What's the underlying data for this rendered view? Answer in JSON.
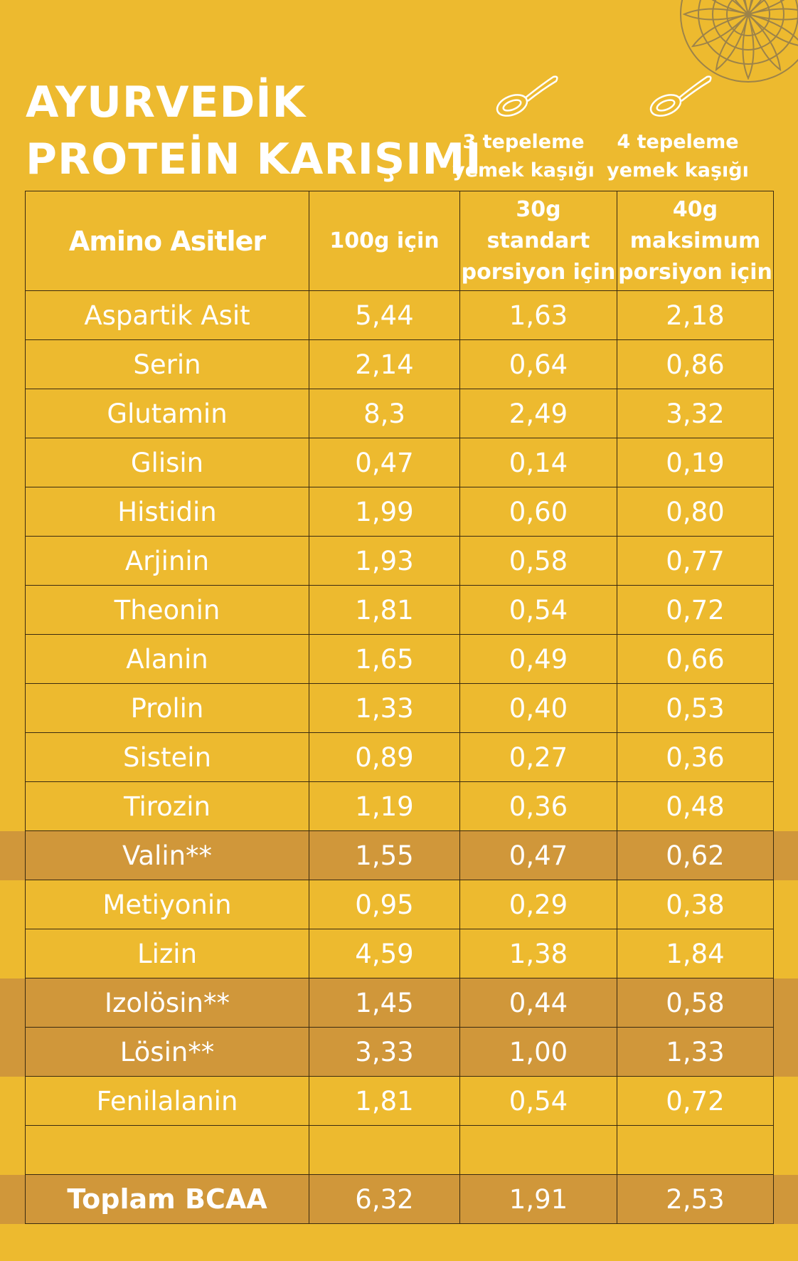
{
  "title": {
    "line1": "AYURVEDİK",
    "line2": "PROTEİN KARIŞIMI"
  },
  "serving_notes": [
    {
      "line1": "3 tepeleme",
      "line2": "yemek kaşığı",
      "icon": "spoon-icon"
    },
    {
      "line1": "4 tepeleme",
      "line2": "yemek kaşığı",
      "icon": "spoon-icon"
    }
  ],
  "table": {
    "headers": [
      {
        "lines": [
          "Amino Asitler"
        ]
      },
      {
        "lines": [
          "100g için"
        ]
      },
      {
        "lines": [
          "30g",
          "standart",
          "porsiyon için"
        ]
      },
      {
        "lines": [
          "40g",
          "maksimum",
          "porsiyon için"
        ]
      }
    ],
    "rows": [
      {
        "name": "Aspartik Asit",
        "per100": "5,44",
        "per30": "1,63",
        "per40": "2,18",
        "highlight": false
      },
      {
        "name": "Serin",
        "per100": "2,14",
        "per30": "0,64",
        "per40": "0,86",
        "highlight": false
      },
      {
        "name": "Glutamin",
        "per100": "8,3",
        "per30": "2,49",
        "per40": "3,32",
        "highlight": false
      },
      {
        "name": "Glisin",
        "per100": "0,47",
        "per30": "0,14",
        "per40": "0,19",
        "highlight": false
      },
      {
        "name": "Histidin",
        "per100": "1,99",
        "per30": "0,60",
        "per40": "0,80",
        "highlight": false
      },
      {
        "name": "Arjinin",
        "per100": "1,93",
        "per30": "0,58",
        "per40": "0,77",
        "highlight": false
      },
      {
        "name": "Theonin",
        "per100": "1,81",
        "per30": "0,54",
        "per40": "0,72",
        "highlight": false
      },
      {
        "name": "Alanin",
        "per100": "1,65",
        "per30": "0,49",
        "per40": "0,66",
        "highlight": false
      },
      {
        "name": "Prolin",
        "per100": "1,33",
        "per30": "0,40",
        "per40": "0,53",
        "highlight": false
      },
      {
        "name": "Sistein",
        "per100": "0,89",
        "per30": "0,27",
        "per40": "0,36",
        "highlight": false
      },
      {
        "name": "Tirozin",
        "per100": "1,19",
        "per30": "0,36",
        "per40": "0,48",
        "highlight": false
      },
      {
        "name": "Valin**",
        "per100": "1,55",
        "per30": "0,47",
        "per40": "0,62",
        "highlight": true
      },
      {
        "name": "Metiyonin",
        "per100": "0,95",
        "per30": "0,29",
        "per40": "0,38",
        "highlight": false
      },
      {
        "name": "Lizin",
        "per100": "4,59",
        "per30": "1,38",
        "per40": "1,84",
        "highlight": false
      },
      {
        "name": "Izolösin**",
        "per100": "1,45",
        "per30": "0,44",
        "per40": "0,58",
        "highlight": true
      },
      {
        "name": "Lösin**",
        "per100": "3,33",
        "per30": "1,00",
        "per40": "1,33",
        "highlight": true
      },
      {
        "name": "Fenilalanin",
        "per100": "1,81",
        "per30": "0,54",
        "per40": "0,72",
        "highlight": false
      },
      {
        "name": "",
        "per100": "",
        "per30": "",
        "per40": "",
        "highlight": false
      },
      {
        "name": "Toplam BCAA",
        "per100": "6,32",
        "per30": "1,91",
        "per40": "2,53",
        "highlight": true,
        "total": true
      }
    ]
  },
  "colors": {
    "background": "#EDBA2F",
    "highlight_band": "#D0973A",
    "text": "#FFFFFF",
    "grid_line": "#3A2A10",
    "ornament": "#8A7650"
  }
}
